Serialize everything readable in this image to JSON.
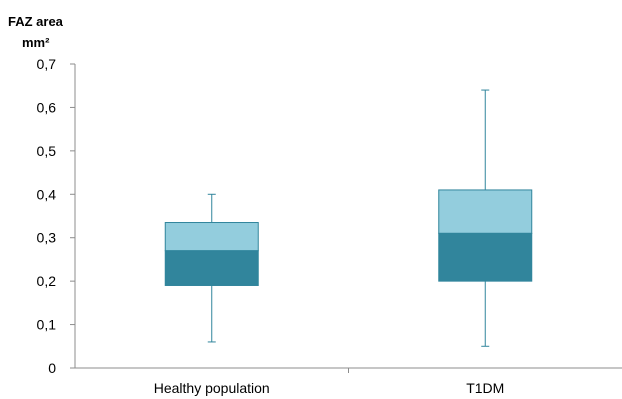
{
  "chart_data": {
    "type": "box",
    "ylabel_lines": [
      "FAZ area",
      "mm²"
    ],
    "ylim": [
      0,
      0.7
    ],
    "yticks": [
      {
        "value": 0,
        "label": "0"
      },
      {
        "value": 0.1,
        "label": "0,1"
      },
      {
        "value": 0.2,
        "label": "0,2"
      },
      {
        "value": 0.3,
        "label": "0,3"
      },
      {
        "value": 0.4,
        "label": "0,4"
      },
      {
        "value": 0.5,
        "label": "0,5"
      },
      {
        "value": 0.6,
        "label": "0,6"
      },
      {
        "value": 0.7,
        "label": "0,7"
      }
    ],
    "grid": false,
    "categories": [
      "Healthy population",
      "T1DM"
    ],
    "boxes": [
      {
        "category": "Healthy population",
        "min": 0.06,
        "q1": 0.19,
        "median": 0.27,
        "q3": 0.335,
        "max": 0.4
      },
      {
        "category": "T1DM",
        "min": 0.05,
        "q1": 0.2,
        "median": 0.31,
        "q3": 0.41,
        "max": 0.64
      }
    ],
    "colors": {
      "upper_box": "#93CDDD",
      "lower_box": "#31859C",
      "box_border": "#31859C",
      "whisker": "#31859C",
      "axis": "#8c8c8c"
    }
  }
}
